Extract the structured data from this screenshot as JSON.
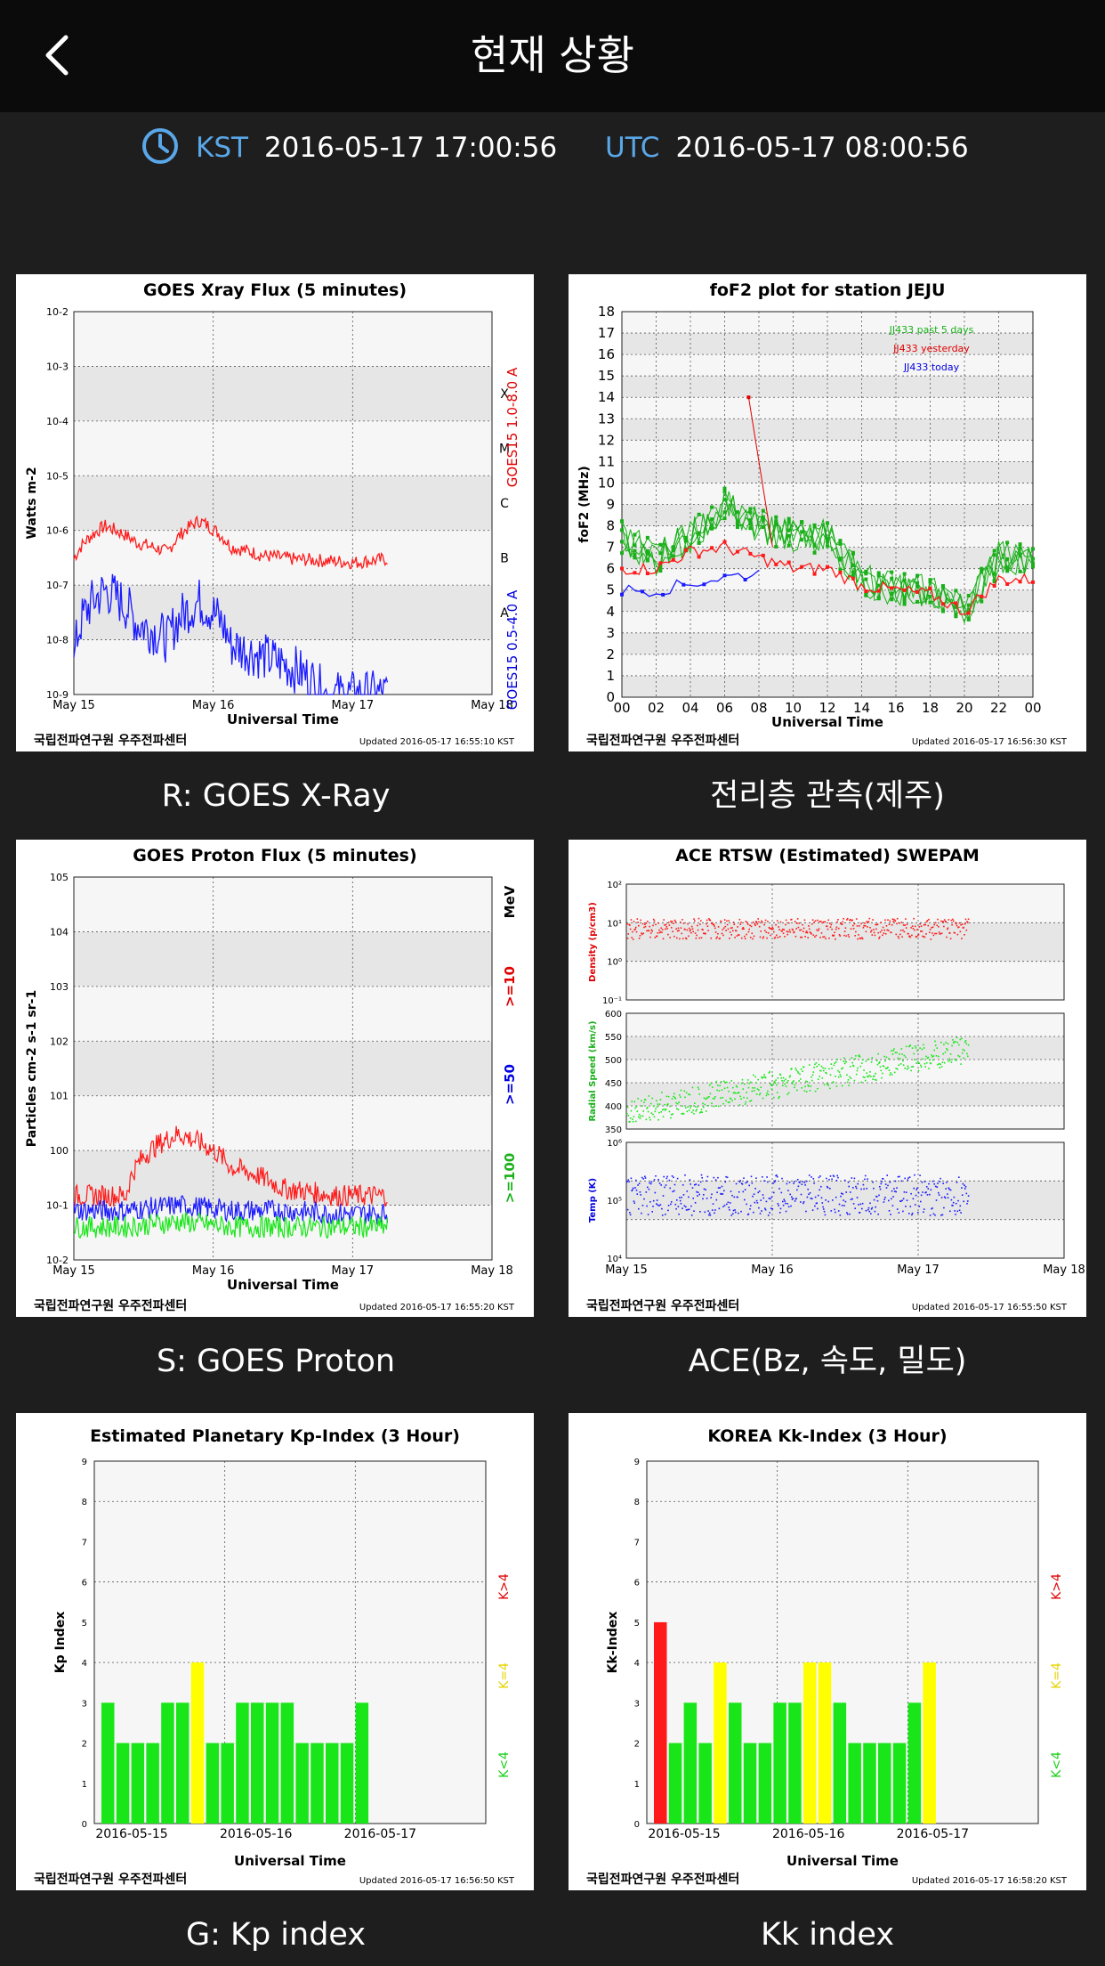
{
  "header": {
    "title": "현재 상황"
  },
  "time": {
    "kst_label": "KST",
    "kst_value": "2016-05-17 17:00:56",
    "utc_label": "UTC",
    "utc_value": "2016-05-17 08:00:56"
  },
  "colors": {
    "accent": "#5aa7e8",
    "red": "#ff1a1a",
    "blue": "#1a1aff",
    "green": "#19e619",
    "yellow": "#ffff00"
  },
  "panels": [
    {
      "caption": "R: GOES X-Ray",
      "title": "GOES Xray Flux (5 minutes)",
      "ylabel": "Watts m-2",
      "xlabel": "Universal Time",
      "xticks": [
        "May 15",
        "May 16",
        "May 17",
        "May 18"
      ],
      "classes": [
        "X",
        "M",
        "C",
        "B",
        "A"
      ],
      "series_labels": [
        "GOES15 1.0-8.0 A",
        "GOES15 0.5-4.0 A"
      ],
      "footer_left": "국립전파연구원 우주전파센터",
      "footer_right": "Updated 2016-05-17 16:55:10 KST"
    },
    {
      "caption": "전리층 관측(제주)",
      "title": "foF2 plot for station JEJU",
      "ylabel": "foF2 (MHz)",
      "xlabel": "Universal Time",
      "xticks": [
        "00",
        "02",
        "04",
        "06",
        "08",
        "10",
        "12",
        "14",
        "16",
        "18",
        "20",
        "22",
        "00"
      ],
      "legend": [
        "JJ433 past 5 days",
        "JJ433 yesterday",
        "JJ433 today"
      ],
      "footer_left": "국립전파연구원 우주전파센터",
      "footer_right": "Updated 2016-05-17 16:56:30 KST"
    },
    {
      "caption": "S: GOES Proton",
      "title": "GOES Proton Flux (5 minutes)",
      "ylabel": "Particles cm-2 s-1 sr-1",
      "xlabel": "Universal Time",
      "xticks": [
        "May 15",
        "May 16",
        "May 17",
        "May 18"
      ],
      "series_labels": [
        "MeV",
        ">=10",
        ">=50",
        ">=100"
      ],
      "footer_left": "국립전파연구원 우주전파센터",
      "footer_right": "Updated 2016-05-17 16:55:20 KST"
    },
    {
      "caption": "ACE(Bz, 속도, 밀도)",
      "title": "ACE RTSW (Estimated) SWEPAM",
      "sub_ylabels": [
        "Density (p/cm3)",
        "Radial Speed (km/s)",
        "Temp (K)"
      ],
      "xticks": [
        "May 15",
        "May 16",
        "May 17",
        "May 18"
      ],
      "footer_left": "국립전파연구원 우주전파센터",
      "footer_right": "Updated 2016-05-17 16:55:50 KST"
    },
    {
      "caption": "G: Kp index",
      "title": "Estimated Planetary Kp-Index (3 Hour)",
      "ylabel": "Kp Index",
      "xlabel": "Universal Time",
      "xticks": [
        "2016-05-15",
        "2016-05-16",
        "2016-05-17"
      ],
      "legend": [
        "K>4",
        "K=4",
        "K<4"
      ],
      "footer_left": "국립전파연구원 우주전파센터",
      "footer_right": "Updated 2016-05-17 16:56:50 KST"
    },
    {
      "caption": "Kk index",
      "title": "KOREA Kk-Index (3 Hour)",
      "ylabel": "Kk-Index",
      "xlabel": "Universal Time",
      "xticks": [
        "2016-05-15",
        "2016-05-16",
        "2016-05-17"
      ],
      "legend": [
        "K>4",
        "K=4",
        "K<4"
      ],
      "footer_left": "국립전파연구원 우주전파센터",
      "footer_right": "Updated 2016-05-17 16:58:20 KST"
    }
  ],
  "chart_data": [
    {
      "type": "line",
      "title": "GOES Xray Flux (5 minutes)",
      "xlabel": "Universal Time",
      "ylabel": "Watts m-2",
      "yscale": "log",
      "ylim": [
        1e-09,
        0.01
      ],
      "xlim": [
        "2016-05-15",
        "2016-05-18"
      ],
      "series": [
        {
          "name": "GOES15 1.0-8.0 A",
          "color": "#ff1a1a",
          "x": [
            "2016-05-15 00:00",
            "2016-05-15 06:00",
            "2016-05-15 12:00",
            "2016-05-15 16:00",
            "2016-05-15 18:00",
            "2016-05-16 00:00",
            "2016-05-16 06:00",
            "2016-05-16 12:00",
            "2016-05-16 18:00",
            "2016-05-17 00:00",
            "2016-05-17 08:00"
          ],
          "values": [
            3e-07,
            1.2e-06,
            6e-07,
            4e-07,
            1.5e-06,
            5e-07,
            3.5e-07,
            3e-07,
            2.8e-07,
            2.6e-07,
            3e-07
          ]
        },
        {
          "name": "GOES15 0.5-4.0 A",
          "color": "#1a1aff",
          "x": [
            "2016-05-15 00:00",
            "2016-05-15 06:00",
            "2016-05-15 12:00",
            "2016-05-15 16:00",
            "2016-05-15 18:00",
            "2016-05-16 00:00",
            "2016-05-16 06:00",
            "2016-05-16 12:00",
            "2016-05-16 18:00",
            "2016-05-17 00:00",
            "2016-05-17 08:00"
          ],
          "values": [
            3e-09,
            8e-08,
            2e-08,
            1e-08,
            5e-08,
            8e-09,
            5e-09,
            3e-09,
            1e-09,
            1e-09,
            1e-09
          ]
        }
      ]
    },
    {
      "type": "line",
      "title": "foF2 plot for station JEJU",
      "xlabel": "Universal Time",
      "ylabel": "foF2 (MHz)",
      "ylim": [
        0,
        18
      ],
      "x": [
        "00",
        "02",
        "04",
        "06",
        "08",
        "10",
        "12",
        "14",
        "16",
        "18",
        "20",
        "22",
        "00"
      ],
      "series": [
        {
          "name": "JJ433 past 5 days",
          "color": "#19b019",
          "values": [
            7.5,
            6.5,
            7.5,
            9,
            8,
            7.5,
            7.5,
            5.5,
            5,
            5,
            4,
            6.5,
            6.5
          ]
        },
        {
          "name": "JJ433 yesterday",
          "color": "#ff1a1a",
          "values": [
            null,
            6,
            6.8,
            7,
            6.5,
            6,
            6,
            5.2,
            5,
            4.8,
            4,
            5.5,
            5.5
          ]
        },
        {
          "name": "JJ433 today",
          "color": "#1a1aff",
          "values": [
            5,
            5,
            5.3,
            5.6,
            5.8,
            null,
            null,
            null,
            null,
            null,
            null,
            null,
            null
          ]
        }
      ]
    },
    {
      "type": "line",
      "title": "GOES Proton Flux (5 minutes)",
      "xlabel": "Universal Time",
      "ylabel": "Particles cm-2 s-1 sr-1",
      "yscale": "log",
      "ylim": [
        0.01,
        100000
      ],
      "series": [
        {
          "name": ">=10",
          "color": "#ff1a1a",
          "values": [
            0.15,
            0.15,
            2,
            0.5,
            0.2,
            0.15,
            0.15
          ]
        },
        {
          "name": ">=50",
          "color": "#1a1aff",
          "values": [
            0.08,
            0.08,
            0.1,
            0.08,
            0.08,
            0.07,
            0.07
          ]
        },
        {
          "name": ">=100",
          "color": "#19e619",
          "values": [
            0.04,
            0.04,
            0.05,
            0.04,
            0.04,
            0.04,
            0.04
          ]
        }
      ]
    },
    {
      "type": "scatter",
      "title": "ACE RTSW (Estimated) SWEPAM",
      "series": [
        {
          "name": "Density (p/cm3)",
          "color": "#ff1a1a",
          "values": [
            4,
            4,
            3,
            3,
            3,
            3
          ],
          "ylim": [
            0.1,
            100
          ]
        },
        {
          "name": "Radial Speed (km/s)",
          "color": "#19e619",
          "values": [
            380,
            420,
            450,
            480,
            490,
            500
          ],
          "ylim": [
            350,
            600
          ]
        },
        {
          "name": "Temp (K)",
          "color": "#1a1aff",
          "values": [
            80000,
            100000,
            120000,
            100000,
            100000,
            100000
          ],
          "ylim": [
            10000,
            1000000
          ]
        }
      ]
    },
    {
      "type": "bar",
      "title": "Estimated Planetary Kp-Index (3 Hour)",
      "xlabel": "Universal Time",
      "ylabel": "Kp Index",
      "ylim": [
        0,
        9
      ],
      "values": [
        3,
        2,
        2,
        2,
        3,
        3,
        4,
        2,
        2,
        3,
        3,
        3,
        3,
        2,
        2,
        2,
        2,
        3
      ]
    },
    {
      "type": "bar",
      "title": "KOREA Kk-Index (3 Hour)",
      "xlabel": "Universal Time",
      "ylabel": "Kk-Index",
      "ylim": [
        0,
        9
      ],
      "values": [
        5,
        2,
        3,
        2,
        4,
        3,
        2,
        2,
        3,
        3,
        4,
        4,
        3,
        2,
        2,
        2,
        2,
        3,
        4
      ]
    }
  ]
}
